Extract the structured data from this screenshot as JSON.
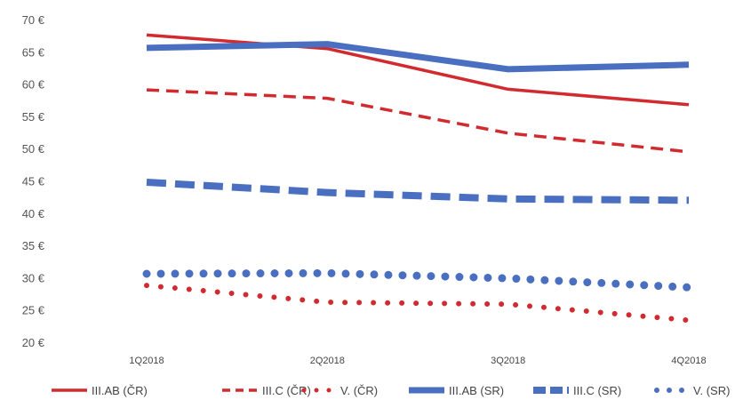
{
  "chart_data": {
    "type": "line",
    "title": "",
    "xlabel": "",
    "ylabel": "",
    "categories": [
      "1Q2018",
      "2Q2018",
      "3Q2018",
      "4Q2018"
    ],
    "ylim": [
      20,
      70
    ],
    "yticks": [
      20,
      25,
      30,
      35,
      40,
      45,
      50,
      55,
      60,
      65,
      70
    ],
    "y_unit_suffix": " €",
    "grid": false,
    "legend_position": "bottom",
    "series": [
      {
        "name": "III.AB (ČR)",
        "values": [
          67.6,
          65.5,
          59.2,
          56.8
        ],
        "color": "#d12a2f",
        "style": "solid"
      },
      {
        "name": "III.C (ČR)",
        "values": [
          59.1,
          57.8,
          52.4,
          49.5
        ],
        "color": "#d12a2f",
        "style": "dashed"
      },
      {
        "name": "V. (ČR)",
        "values": [
          28.8,
          26.2,
          25.9,
          23.4
        ],
        "color": "#d12a2f",
        "style": "dotted"
      },
      {
        "name": "III.AB (SR)",
        "values": [
          65.6,
          66.2,
          62.3,
          63.0
        ],
        "color": "#4a6fc0",
        "style": "solid"
      },
      {
        "name": "III.C (SR)",
        "values": [
          44.8,
          43.2,
          42.2,
          42.0
        ],
        "color": "#4a6fc0",
        "style": "dashed"
      },
      {
        "name": "V. (SR)",
        "values": [
          30.6,
          30.7,
          29.9,
          28.5
        ],
        "color": "#4a6fc0",
        "style": "dotted"
      }
    ]
  }
}
